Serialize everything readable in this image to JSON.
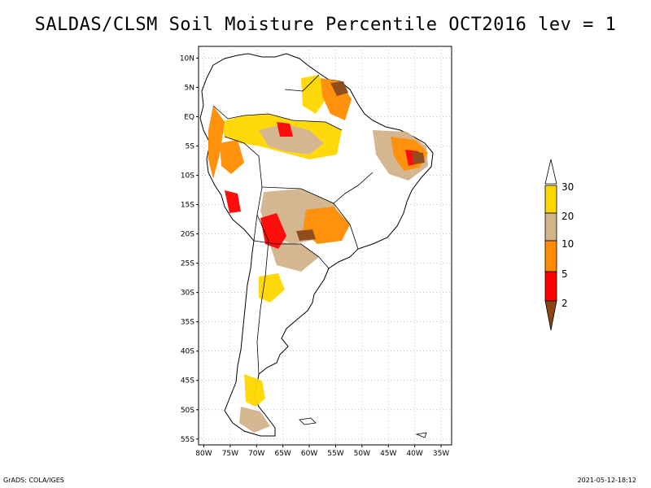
{
  "title": "SALDAS/CLSM Soil Moisture Percentile OCT2016 lev = 1",
  "map": {
    "lat_ticks": [
      "10N",
      "5N",
      "EQ",
      "5S",
      "10S",
      "15S",
      "20S",
      "25S",
      "30S",
      "35S",
      "40S",
      "45S",
      "50S",
      "55S"
    ],
    "lon_ticks": [
      "80W",
      "75W",
      "70W",
      "65W",
      "60W",
      "55W",
      "50W",
      "45W",
      "40W",
      "35W"
    ],
    "extent": {
      "lon_min": -81,
      "lon_max": -33,
      "lat_min": -56,
      "lat_max": 12
    }
  },
  "legend": {
    "labels": [
      "30",
      "20",
      "10",
      "5",
      "2"
    ],
    "colors": {
      "top_arrow": "#ffffff",
      "c20_30": "#ffd700",
      "c10_20": "#d2b48c",
      "c5_10": "#ff8c00",
      "c2_5": "#ff0000",
      "below2": "#8b4513"
    }
  },
  "footer": {
    "left": "GrADS: COLA/IGES",
    "right": "2021-05-12-18:12"
  }
}
